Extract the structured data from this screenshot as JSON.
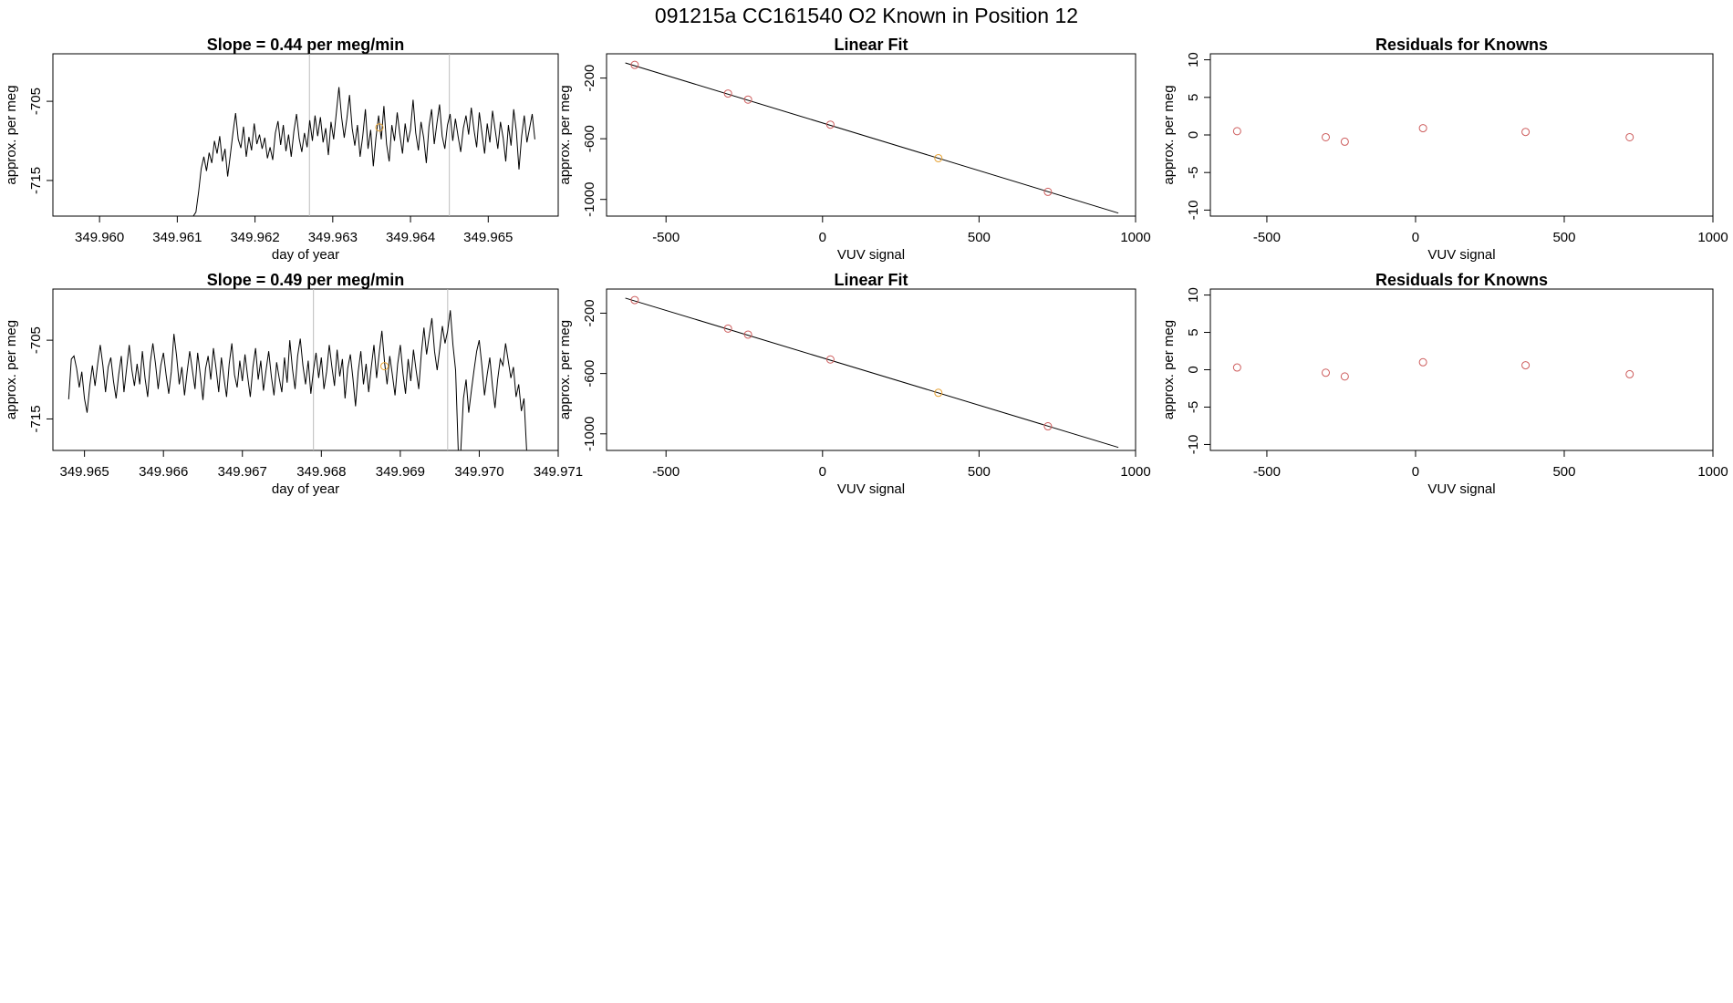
{
  "main_title": "091215a      CC161540   O2 Known in Position  12",
  "colors": {
    "point": "#cd5c5c",
    "highlight": "#e6a030",
    "line": "#000000",
    "vline": "#bdbdbd"
  },
  "chart_data": [
    {
      "type": "line",
      "title": "Slope =  0.44  per meg/min",
      "xlabel": "day of year",
      "ylabel": "approx. per meg",
      "xlim": [
        349.9594,
        349.9659
      ],
      "ylim": [
        -719.5,
        -699.0
      ],
      "xticks": [
        349.96,
        349.961,
        349.962,
        349.963,
        349.964,
        349.965
      ],
      "xtick_labels": [
        "349.960",
        "349.961",
        "349.962",
        "349.963",
        "349.964",
        "349.965"
      ],
      "yticks": [
        -715,
        -705
      ],
      "ytick_labels": [
        "-715",
        "-705"
      ],
      "vlines": [
        349.9627,
        349.9645
      ],
      "highlight_point": {
        "x": 349.9636,
        "y": -708.3
      },
      "trace": {
        "x_start": 349.9594,
        "x_end": 349.9656,
        "y": [
          -719.5,
          -719.5,
          -719.5,
          -719.5,
          -719.5,
          -719.5,
          -719.5,
          -719.5,
          -719.5,
          -719.5,
          -719.5,
          -719.5,
          -719.5,
          -719.5,
          -719.5,
          -719.5,
          -719.5,
          -719.5,
          -719.5,
          -719.5,
          -719.5,
          -719.5,
          -719.5,
          -719.5,
          -719.5,
          -719.5,
          -719.5,
          -719.5,
          -719.5,
          -719.5,
          -719.5,
          -719.5,
          -719.5,
          -719.5,
          -719.5,
          -719.5,
          -719.5,
          -719.5,
          -719.5,
          -719.5,
          -719.5,
          -719.5,
          -719.5,
          -719.5,
          -719.5,
          -719.5,
          -719.5,
          -719.5,
          -719.5,
          -719.5,
          -719.5,
          -719.5,
          -719.5,
          -719.5,
          -719.0,
          -716.5,
          -713.5,
          -712.0,
          -713.8,
          -711.5,
          -712.8,
          -710.0,
          -711.6,
          -709.4,
          -712.6,
          -711.0,
          -714.5,
          -711.8,
          -709.0,
          -706.5,
          -709.8,
          -710.9,
          -708.2,
          -712.0,
          -709.5,
          -711.2,
          -707.8,
          -710.4,
          -709.2,
          -711.0,
          -709.6,
          -712.2,
          -710.8,
          -712.4,
          -709.0,
          -707.5,
          -710.5,
          -708.0,
          -711.3,
          -709.2,
          -712.0,
          -708.8,
          -706.6,
          -709.7,
          -711.4,
          -709.0,
          -710.8,
          -707.4,
          -710.0,
          -706.8,
          -709.4,
          -707.0,
          -710.2,
          -708.4,
          -711.8,
          -707.6,
          -709.8,
          -706.5,
          -703.2,
          -707.0,
          -709.6,
          -707.2,
          -704.2,
          -708.4,
          -710.6,
          -708.0,
          -712.0,
          -709.4,
          -706.0,
          -711.0,
          -708.6,
          -713.2,
          -709.6,
          -706.8,
          -709.8,
          -705.6,
          -710.4,
          -712.6,
          -708.0,
          -710.0,
          -706.4,
          -709.2,
          -711.6,
          -707.8,
          -710.2,
          -708.6,
          -704.8,
          -709.0,
          -711.2,
          -707.6,
          -709.6,
          -712.8,
          -708.2,
          -706.0,
          -710.4,
          -707.8,
          -705.4,
          -709.4,
          -711.0,
          -708.0,
          -706.6,
          -710.0,
          -707.2,
          -709.4,
          -711.4,
          -708.4,
          -706.8,
          -709.2,
          -705.8,
          -708.6,
          -710.8,
          -706.4,
          -709.0,
          -711.6,
          -707.8,
          -710.2,
          -706.2,
          -708.6,
          -711.0,
          -707.6,
          -709.6,
          -712.6,
          -708.0,
          -710.6,
          -706.0,
          -708.8,
          -713.6,
          -709.4,
          -706.8,
          -710.2,
          -708.4,
          -706.6,
          -709.8
        ]
      }
    },
    {
      "type": "scatter",
      "title": "Linear Fit",
      "xlabel": "VUV signal",
      "ylabel": "approx. per meg",
      "xlim": [
        -690,
        1000
      ],
      "ylim": [
        -1110,
        -40
      ],
      "xticks": [
        -500,
        0,
        500,
        1000
      ],
      "xtick_labels": [
        "-500",
        "0",
        "500",
        "1000"
      ],
      "yticks": [
        -1000,
        -600,
        -200
      ],
      "ytick_labels": [
        "-1000",
        "-600",
        "-200"
      ],
      "fit_line": {
        "x": [
          -630,
          945
        ],
        "y": [
          -100,
          -1090
        ]
      },
      "points": [
        {
          "x": -600,
          "y": -113
        },
        {
          "x": -302,
          "y": -302
        },
        {
          "x": -238,
          "y": -342
        },
        {
          "x": 25,
          "y": -507
        },
        {
          "x": 370,
          "y": -728
        },
        {
          "x": 720,
          "y": -950
        }
      ],
      "highlight_index": 4
    },
    {
      "type": "scatter",
      "title": "Residuals for Knowns",
      "xlabel": "VUV signal",
      "ylabel": "approx. per meg",
      "xlim": [
        -690,
        1000
      ],
      "ylim": [
        -10.8,
        10.8
      ],
      "xticks": [
        -500,
        0,
        500,
        1000
      ],
      "xtick_labels": [
        "-500",
        "0",
        "500",
        "1000"
      ],
      "yticks": [
        -10,
        -5,
        0,
        5,
        10
      ],
      "ytick_labels": [
        "-10",
        "-5",
        "0",
        "5",
        "10"
      ],
      "points": [
        {
          "x": -600,
          "y": 0.5
        },
        {
          "x": -302,
          "y": -0.3
        },
        {
          "x": -238,
          "y": -0.9
        },
        {
          "x": 25,
          "y": 0.9
        },
        {
          "x": 370,
          "y": 0.4
        },
        {
          "x": 720,
          "y": -0.3
        }
      ]
    },
    {
      "type": "line",
      "title": "Slope =  0.49  per meg/min",
      "xlabel": "day of year",
      "ylabel": "approx. per meg",
      "xlim": [
        349.9646,
        349.971
      ],
      "ylim": [
        -719.0,
        -698.5
      ],
      "xticks": [
        349.965,
        349.966,
        349.967,
        349.968,
        349.969,
        349.97,
        349.971
      ],
      "xtick_labels": [
        "349.965",
        "349.966",
        "349.967",
        "349.968",
        "349.969",
        "349.970",
        "349.971"
      ],
      "yticks": [
        -715,
        -705
      ],
      "ytick_labels": [
        "-715",
        "-705"
      ],
      "vlines": [
        349.9679,
        349.9696
      ],
      "highlight_point": {
        "x": 349.9688,
        "y": -708.3
      },
      "trace": {
        "x_start": 349.9648,
        "x_end": 349.9706,
        "y": [
          -712.5,
          -707.4,
          -707.0,
          -708.6,
          -711.0,
          -709.0,
          -712.4,
          -714.2,
          -710.8,
          -708.2,
          -710.8,
          -708.0,
          -705.6,
          -708.2,
          -711.6,
          -708.4,
          -707.2,
          -710.2,
          -712.4,
          -709.4,
          -707.0,
          -711.6,
          -708.6,
          -705.6,
          -708.8,
          -710.8,
          -708.0,
          -710.6,
          -706.4,
          -709.8,
          -712.2,
          -707.8,
          -705.4,
          -708.0,
          -711.2,
          -708.2,
          -706.6,
          -709.4,
          -711.8,
          -709.0,
          -704.2,
          -707.0,
          -710.6,
          -708.4,
          -712.0,
          -709.0,
          -706.4,
          -708.8,
          -711.2,
          -706.6,
          -709.4,
          -712.6,
          -708.6,
          -707.0,
          -710.0,
          -706.0,
          -708.6,
          -711.6,
          -707.2,
          -709.8,
          -712.2,
          -708.0,
          -705.4,
          -709.4,
          -711.0,
          -707.6,
          -710.2,
          -706.8,
          -709.6,
          -712.2,
          -708.4,
          -706.0,
          -710.0,
          -707.6,
          -711.4,
          -708.8,
          -706.4,
          -709.6,
          -712.0,
          -707.8,
          -709.8,
          -711.6,
          -707.2,
          -710.4,
          -705.0,
          -708.6,
          -711.2,
          -707.0,
          -704.8,
          -708.2,
          -710.6,
          -707.6,
          -711.8,
          -708.8,
          -706.6,
          -709.8,
          -707.2,
          -711.2,
          -709.0,
          -705.6,
          -708.4,
          -710.8,
          -706.2,
          -709.6,
          -707.4,
          -712.4,
          -708.6,
          -706.8,
          -709.8,
          -713.4,
          -709.0,
          -706.4,
          -710.6,
          -708.0,
          -711.6,
          -708.4,
          -705.6,
          -709.8,
          -706.6,
          -703.8,
          -707.8,
          -710.6,
          -707.0,
          -709.4,
          -712.0,
          -708.0,
          -705.6,
          -709.2,
          -711.8,
          -707.4,
          -710.2,
          -706.2,
          -708.8,
          -711.2,
          -706.6,
          -703.4,
          -706.8,
          -704.4,
          -702.2,
          -706.4,
          -708.8,
          -706.0,
          -703.2,
          -705.4,
          -703.8,
          -701.2,
          -705.6,
          -708.8,
          -719.0,
          -719.0,
          -712.4,
          -710.0,
          -714.2,
          -711.4,
          -708.8,
          -706.4,
          -705.0,
          -708.2,
          -712.0,
          -709.4,
          -707.2,
          -710.8,
          -713.6,
          -710.0,
          -707.4,
          -708.2,
          -705.4,
          -707.6,
          -709.8,
          -708.4,
          -712.2,
          -710.6,
          -714.0,
          -712.4,
          -719.0
        ]
      }
    },
    {
      "type": "scatter",
      "title": "Linear Fit",
      "xlabel": "VUV signal",
      "ylabel": "approx. per meg",
      "xlim": [
        -690,
        1000
      ],
      "ylim": [
        -1110,
        -40
      ],
      "xticks": [
        -500,
        0,
        500,
        1000
      ],
      "xtick_labels": [
        "-500",
        "0",
        "500",
        "1000"
      ],
      "yticks": [
        -1000,
        -600,
        -200
      ],
      "ytick_labels": [
        "-1000",
        "-600",
        "-200"
      ],
      "fit_line": {
        "x": [
          -630,
          945
        ],
        "y": [
          -100,
          -1090
        ]
      },
      "points": [
        {
          "x": -600,
          "y": -113
        },
        {
          "x": -302,
          "y": -302
        },
        {
          "x": -238,
          "y": -342
        },
        {
          "x": 25,
          "y": -507
        },
        {
          "x": 370,
          "y": -728
        },
        {
          "x": 720,
          "y": -950
        }
      ],
      "highlight_index": 4
    },
    {
      "type": "scatter",
      "title": "Residuals for Knowns",
      "xlabel": "VUV signal",
      "ylabel": "approx. per meg",
      "xlim": [
        -690,
        1000
      ],
      "ylim": [
        -10.8,
        10.8
      ],
      "xticks": [
        -500,
        0,
        500,
        1000
      ],
      "xtick_labels": [
        "-500",
        "0",
        "500",
        "1000"
      ],
      "yticks": [
        -10,
        -5,
        0,
        5,
        10
      ],
      "ytick_labels": [
        "-10",
        "-5",
        "0",
        "5",
        "10"
      ],
      "points": [
        {
          "x": -600,
          "y": 0.3
        },
        {
          "x": -302,
          "y": -0.4
        },
        {
          "x": -238,
          "y": -0.9
        },
        {
          "x": 25,
          "y": 1.0
        },
        {
          "x": 370,
          "y": 0.6
        },
        {
          "x": 720,
          "y": -0.6
        }
      ]
    }
  ]
}
